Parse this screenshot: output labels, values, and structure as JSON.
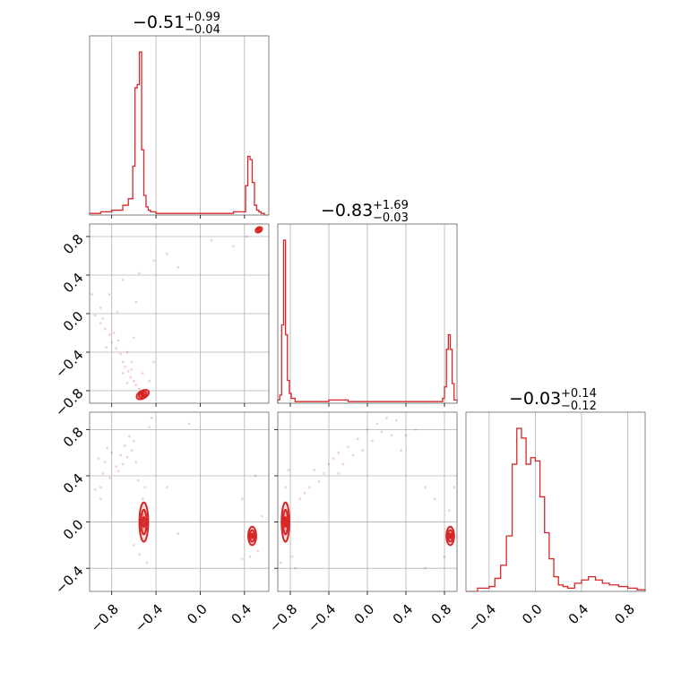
{
  "chart_data": {
    "type": "corner",
    "color": "#d62728",
    "grid": true,
    "titles": [
      {
        "value": "−0.51",
        "plus": "+0.99",
        "minus": "−0.04"
      },
      {
        "value": "−0.83",
        "plus": "+1.69",
        "minus": "−0.03"
      },
      {
        "value": "−0.03",
        "plus": "+0.14",
        "minus": "−0.12"
      }
    ],
    "params": [
      {
        "range": [
          -1.0,
          0.62
        ],
        "ticks": [
          -0.8,
          -0.4,
          0.0,
          0.4
        ],
        "tick_labels": [
          "−0.8",
          "−0.4",
          "0.0",
          "0.4"
        ]
      },
      {
        "range": [
          -0.93,
          0.93
        ],
        "ticks": [
          -0.8,
          -0.4,
          0.0,
          0.4,
          0.8
        ],
        "tick_labels": [
          "−0.8",
          "−0.4",
          "0.0",
          "0.4",
          "0.8"
        ]
      },
      {
        "range": [
          -0.6,
          0.95
        ],
        "ticks": [
          -0.4,
          0.0,
          0.4,
          0.8
        ],
        "tick_labels": [
          "−0.4",
          "0.0",
          "0.4",
          "0.8"
        ]
      }
    ],
    "histograms": [
      {
        "param": 0,
        "edges": [
          -1.0,
          -0.9,
          -0.8,
          -0.7,
          -0.65,
          -0.61,
          -0.59,
          -0.57,
          -0.55,
          -0.53,
          -0.51,
          -0.49,
          -0.47,
          -0.45,
          -0.4,
          -0.3,
          0.0,
          0.3,
          0.41,
          0.43,
          0.45,
          0.47,
          0.49,
          0.51,
          0.53,
          0.55,
          0.58,
          0.62
        ],
        "counts": [
          1,
          2,
          3,
          6,
          10,
          30,
          78,
          80,
          100,
          40,
          12,
          5,
          3,
          2,
          1,
          1,
          1,
          2,
          18,
          36,
          34,
          20,
          6,
          3,
          2,
          1,
          0
        ]
      },
      {
        "param": 1,
        "edges": [
          -0.93,
          -0.91,
          -0.89,
          -0.87,
          -0.85,
          -0.83,
          -0.81,
          -0.79,
          -0.75,
          -0.6,
          -0.4,
          -0.2,
          0.0,
          0.2,
          0.4,
          0.6,
          0.78,
          0.8,
          0.82,
          0.84,
          0.86,
          0.88,
          0.9,
          0.93
        ],
        "counts": [
          2,
          5,
          48,
          100,
          42,
          14,
          6,
          3,
          1,
          1,
          2,
          1,
          1,
          1,
          1,
          1,
          3,
          10,
          33,
          42,
          33,
          12,
          2
        ]
      },
      {
        "param": 2,
        "edges": [
          -0.6,
          -0.5,
          -0.4,
          -0.35,
          -0.3,
          -0.25,
          -0.2,
          -0.16,
          -0.12,
          -0.08,
          -0.04,
          0.0,
          0.04,
          0.08,
          0.12,
          0.16,
          0.2,
          0.24,
          0.28,
          0.34,
          0.4,
          0.46,
          0.52,
          0.58,
          0.64,
          0.72,
          0.8,
          0.88,
          0.95
        ],
        "counts": [
          0,
          2,
          3,
          8,
          16,
          34,
          78,
          100,
          94,
          78,
          82,
          80,
          58,
          36,
          20,
          9,
          4,
          3,
          2,
          5,
          7,
          9,
          7,
          5,
          4,
          3,
          2,
          1
        ]
      }
    ],
    "pairs": [
      {
        "x_param": 0,
        "y_param": 1,
        "modes": [
          {
            "center": [
              -0.52,
              -0.84
            ],
            "spread": [
              0.03,
              0.02
            ],
            "angle_deg": -30,
            "levels": 3
          },
          {
            "center": [
              0.53,
              0.87
            ],
            "spread": [
              0.025,
              0.02
            ],
            "angle_deg": -30,
            "levels": 2
          }
        ],
        "scatter": [
          [
            -0.95,
            -0.02
          ],
          [
            -0.9,
            -0.1
          ],
          [
            -0.86,
            -0.16
          ],
          [
            -0.82,
            -0.22
          ],
          [
            -0.8,
            -0.3
          ],
          [
            -0.76,
            -0.36
          ],
          [
            -0.72,
            -0.42
          ],
          [
            -0.7,
            -0.5
          ],
          [
            -0.68,
            -0.55
          ],
          [
            -0.65,
            -0.6
          ],
          [
            -0.63,
            -0.66
          ],
          [
            -0.6,
            -0.7
          ],
          [
            -0.58,
            -0.74
          ],
          [
            -0.55,
            -0.78
          ],
          [
            -0.85,
            -0.35
          ],
          [
            -0.78,
            -0.2
          ],
          [
            -0.74,
            -0.28
          ],
          [
            -0.66,
            -0.4
          ],
          [
            -0.62,
            -0.5
          ],
          [
            -0.7,
            0.35
          ],
          [
            -0.82,
            0.2
          ],
          [
            -0.75,
            0.02
          ],
          [
            -0.6,
            -0.25
          ],
          [
            -0.58,
            0.12
          ],
          [
            -0.55,
            0.42
          ],
          [
            -0.42,
            0.55
          ],
          [
            -0.3,
            0.62
          ],
          [
            -0.2,
            0.48
          ],
          [
            -0.42,
            -0.5
          ],
          [
            -0.46,
            -0.7
          ],
          [
            -0.62,
            -0.58
          ],
          [
            -0.66,
            -0.72
          ],
          [
            -0.7,
            -0.62
          ],
          [
            0.3,
            0.7
          ],
          [
            0.42,
            0.8
          ],
          [
            0.1,
            0.76
          ],
          [
            -0.98,
            0.2
          ],
          [
            -0.9,
            0.06
          ],
          [
            -0.88,
            -0.05
          ],
          [
            -0.52,
            -0.62
          ]
        ]
      },
      {
        "x_param": 0,
        "y_param": 2,
        "modes": [
          {
            "center": [
              -0.51,
              0.0
            ],
            "spread": [
              0.02,
              0.085
            ],
            "angle_deg": 0,
            "levels": 3
          },
          {
            "center": [
              0.47,
              -0.12
            ],
            "spread": [
              0.018,
              0.04
            ],
            "angle_deg": 0,
            "levels": 3
          }
        ],
        "scatter": [
          [
            -0.92,
            0.55
          ],
          [
            -0.86,
            0.52
          ],
          [
            -0.8,
            0.6
          ],
          [
            -0.76,
            0.48
          ],
          [
            -0.72,
            0.58
          ],
          [
            -0.68,
            0.66
          ],
          [
            -0.64,
            0.74
          ],
          [
            -0.6,
            0.7
          ],
          [
            -0.88,
            0.42
          ],
          [
            -0.82,
            0.38
          ],
          [
            -0.9,
            0.3
          ],
          [
            -0.95,
            0.28
          ],
          [
            -0.74,
            0.44
          ],
          [
            -0.7,
            0.5
          ],
          [
            -0.66,
            0.56
          ],
          [
            -0.62,
            0.62
          ],
          [
            -0.58,
            0.52
          ],
          [
            -0.56,
            0.36
          ],
          [
            -0.46,
            0.82
          ],
          [
            -0.44,
            0.9
          ],
          [
            -0.5,
            0.3
          ],
          [
            -0.48,
            -0.35
          ],
          [
            -0.55,
            -0.28
          ],
          [
            -0.6,
            -0.2
          ],
          [
            -0.52,
            0.2
          ],
          [
            -0.1,
            0.85
          ],
          [
            0.38,
            -0.32
          ],
          [
            0.56,
            0.05
          ],
          [
            0.5,
            0.4
          ],
          [
            0.38,
            0.2
          ],
          [
            0.45,
            -0.3
          ],
          [
            0.52,
            -0.25
          ],
          [
            -0.3,
            0.3
          ],
          [
            -0.2,
            -0.1
          ],
          [
            -0.9,
            0.2
          ],
          [
            -0.84,
            0.64
          ]
        ]
      },
      {
        "x_param": 1,
        "y_param": 2,
        "modes": [
          {
            "center": [
              -0.85,
              0.0
            ],
            "spread": [
              0.02,
              0.085
            ],
            "angle_deg": 0,
            "levels": 3
          },
          {
            "center": [
              0.86,
              -0.12
            ],
            "spread": [
              0.02,
              0.04
            ],
            "angle_deg": 0,
            "levels": 3
          }
        ],
        "scatter": [
          [
            -0.7,
            0.2
          ],
          [
            -0.6,
            0.3
          ],
          [
            -0.5,
            0.35
          ],
          [
            -0.4,
            0.5
          ],
          [
            -0.35,
            0.55
          ],
          [
            -0.3,
            0.6
          ],
          [
            -0.2,
            0.65
          ],
          [
            -0.1,
            0.72
          ],
          [
            0.0,
            0.8
          ],
          [
            0.1,
            0.85
          ],
          [
            0.2,
            0.9
          ],
          [
            0.3,
            0.88
          ],
          [
            -0.45,
            0.42
          ],
          [
            -0.25,
            0.5
          ],
          [
            -0.15,
            0.58
          ],
          [
            0.05,
            0.7
          ],
          [
            0.25,
            0.75
          ],
          [
            -0.65,
            0.25
          ],
          [
            -0.55,
            0.45
          ],
          [
            -0.05,
            0.62
          ],
          [
            0.4,
            0.75
          ],
          [
            0.5,
            0.8
          ],
          [
            0.6,
            0.3
          ],
          [
            0.7,
            0.2
          ],
          [
            -0.85,
            0.3
          ],
          [
            -0.9,
            -0.35
          ],
          [
            -0.78,
            -0.3
          ],
          [
            0.85,
            0.1
          ],
          [
            0.9,
            0.3
          ],
          [
            0.8,
            -0.3
          ],
          [
            0.6,
            -0.4
          ],
          [
            -0.75,
            -0.4
          ],
          [
            -0.3,
            0.42
          ],
          [
            0.15,
            0.78
          ],
          [
            0.35,
            0.62
          ],
          [
            -0.82,
            0.45
          ]
        ]
      }
    ]
  }
}
